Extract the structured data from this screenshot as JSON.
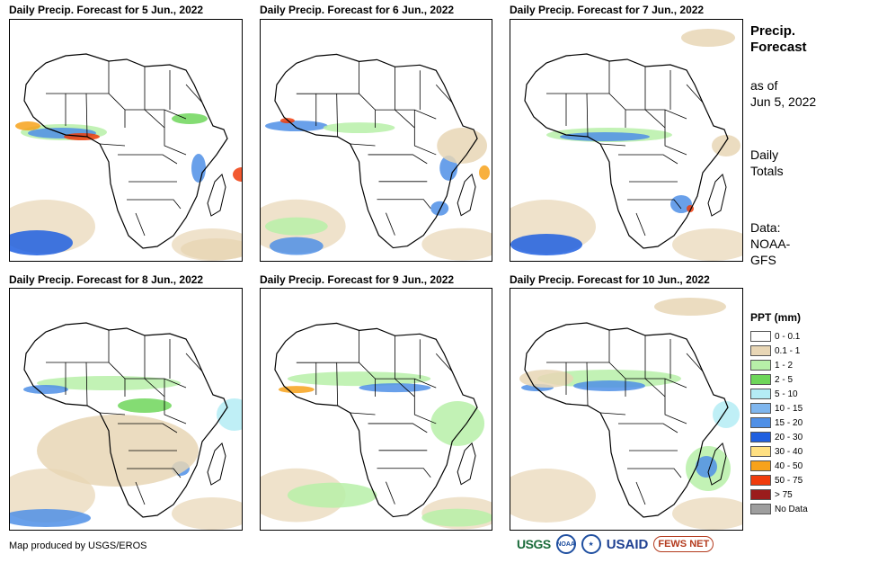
{
  "panels": [
    {
      "title": "Daily Precip. Forecast for 5 Jun., 2022"
    },
    {
      "title": "Daily Precip. Forecast for 6 Jun., 2022"
    },
    {
      "title": "Daily Precip. Forecast for 7 Jun., 2022"
    },
    {
      "title": "Daily Precip. Forecast for 8 Jun., 2022"
    },
    {
      "title": "Daily Precip. Forecast for 9 Jun., 2022"
    },
    {
      "title": "Daily Precip. Forecast for 10 Jun., 2022"
    }
  ],
  "side": {
    "title_line1": "Precip.",
    "title_line2": "Forecast",
    "asof_line1": "as of",
    "asof_line2": "Jun 5, 2022",
    "totals_line1": "Daily",
    "totals_line2": "Totals",
    "data_line1": "Data:",
    "data_line2": "NOAA-",
    "data_line3": "GFS"
  },
  "legend": {
    "title": "PPT (mm)",
    "items": [
      {
        "label": "0 - 0.1",
        "color": "#ffffff"
      },
      {
        "label": "0.1 - 1",
        "color": "#e8d6b5"
      },
      {
        "label": "1 - 2",
        "color": "#b7f0a8"
      },
      {
        "label": "2 - 5",
        "color": "#6ed65a"
      },
      {
        "label": "5 - 10",
        "color": "#b4ecf5"
      },
      {
        "label": "10 - 15",
        "color": "#7fb6ee"
      },
      {
        "label": "15 - 20",
        "color": "#4f8fe6"
      },
      {
        "label": "20 - 30",
        "color": "#1f5fe0"
      },
      {
        "label": "30 - 40",
        "color": "#ffe082"
      },
      {
        "label": "40 - 50",
        "color": "#f7a21b"
      },
      {
        "label": "50 - 75",
        "color": "#f03c0c"
      },
      {
        "label": "> 75",
        "color": "#9b1c1c"
      },
      {
        "label": "No Data",
        "color": "#9e9e9e"
      }
    ]
  },
  "footer": {
    "credit": "Map produced by USGS/EROS",
    "logos": [
      "USGS",
      "NOAA",
      "USAID",
      "FEWS NET"
    ]
  },
  "map_colors": {
    "border": "#000000",
    "tan": "#e8d6b5",
    "lightgreen": "#b7f0a8",
    "green": "#6ed65a",
    "lightblue": "#b4ecf5",
    "blue": "#4f8fe6",
    "darkblue": "#1f5fe0",
    "orange": "#f7a21b",
    "red": "#f03c0c"
  }
}
